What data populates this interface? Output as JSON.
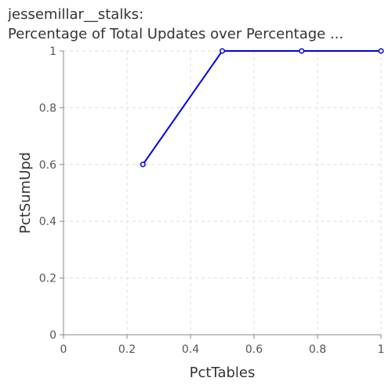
{
  "chart_data": {
    "type": "line",
    "title_lines": [
      "jessemillar__stalks:",
      "Percentage of Total Updates over Percentage ..."
    ],
    "xlabel": "PctTables",
    "ylabel": "PctSumUpd",
    "xlim": [
      0,
      1
    ],
    "ylim": [
      0,
      1
    ],
    "x_ticks": [
      "0",
      "0.2",
      "0.4",
      "0.6",
      "0.8",
      "1"
    ],
    "y_ticks": [
      "0",
      "0.2",
      "0.4",
      "0.6",
      "0.8",
      "1"
    ],
    "grid": true,
    "series": [
      {
        "color": "#0000dd",
        "x": [
          0.25,
          0.5,
          0.75,
          1.0
        ],
        "y": [
          0.6,
          1.0,
          1.0,
          1.0
        ]
      }
    ]
  }
}
